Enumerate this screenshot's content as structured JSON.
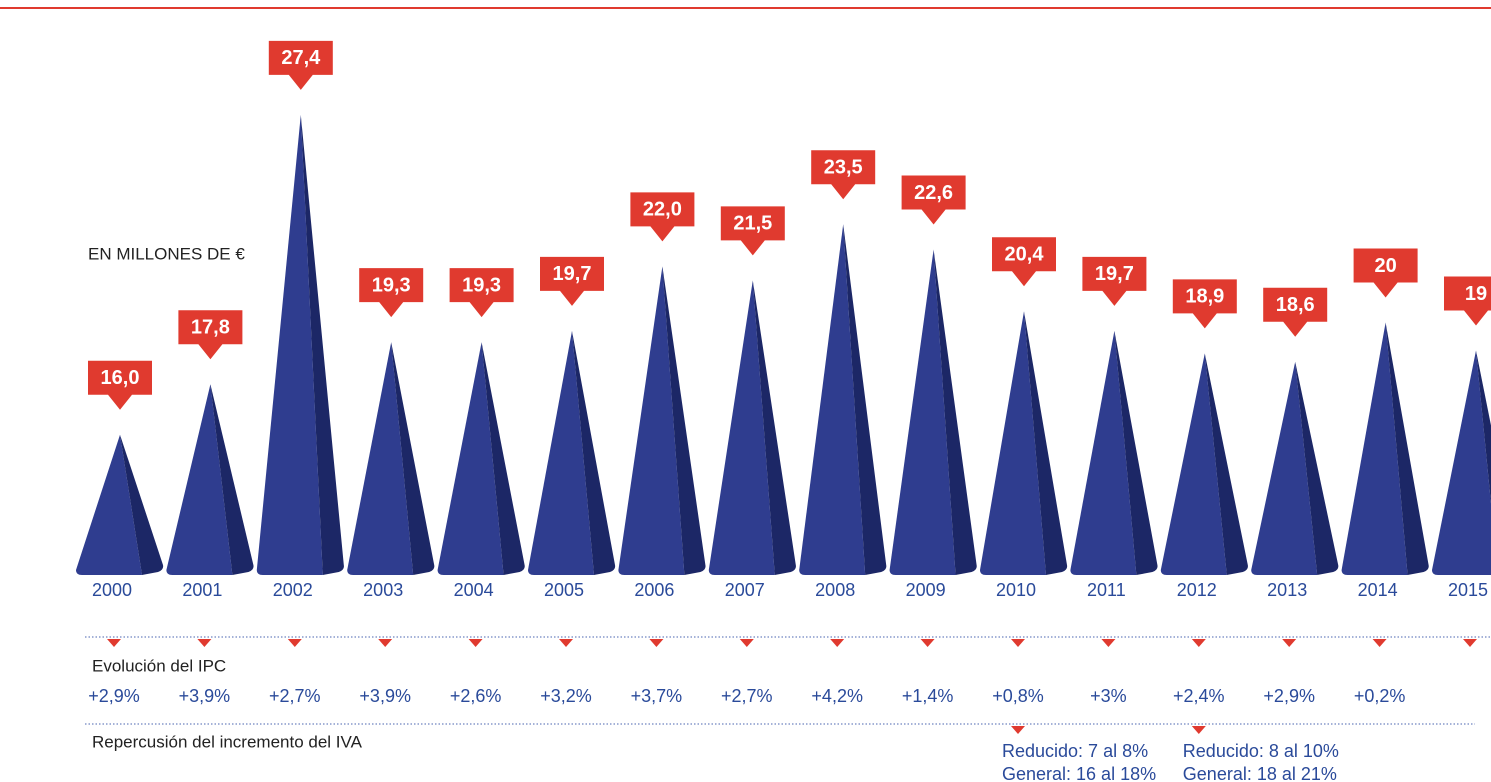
{
  "chart_data": {
    "type": "pyramid",
    "subtitle": "EN MILLONES DE €",
    "categories": [
      "2000",
      "2001",
      "2002",
      "2003",
      "2004",
      "2005",
      "2006",
      "2007",
      "2008",
      "2009",
      "2010",
      "2011",
      "2012",
      "2013",
      "2014",
      "2015"
    ],
    "values": [
      16.0,
      17.8,
      27.4,
      19.3,
      19.3,
      19.7,
      22.0,
      21.5,
      23.5,
      22.6,
      20.4,
      19.7,
      18.9,
      18.6,
      20,
      19
    ],
    "value_labels": [
      "16,0",
      "17,8",
      "27,4",
      "19,3",
      "19,3",
      "19,7",
      "22,0",
      "21,5",
      "23,5",
      "22,6",
      "20,4",
      "19,7",
      "18,9",
      "18,6",
      "20",
      "19"
    ],
    "color": "#2f3d8f",
    "label_color": "#e03a2f",
    "ylim": [
      11,
      28.5
    ],
    "ipc_label": "Evolución del IPC",
    "ipc": [
      "+2,9%",
      "+3,9%",
      "+2,7%",
      "+3,9%",
      "+2,6%",
      "+3,2%",
      "+3,7%",
      "+2,7%",
      "+4,2%",
      "+1,4%",
      "+0,8%",
      "+3%",
      "+2,4%",
      "+2,9%",
      "+0,2%"
    ],
    "iva_label": "Repercusión del incremento del IVA",
    "iva_notes": [
      [
        "Reducido: 7 al 8%",
        "General: 16 al 18%"
      ],
      [
        "Reducido: 8 al 10%",
        "General: 18 al 21%"
      ]
    ]
  }
}
